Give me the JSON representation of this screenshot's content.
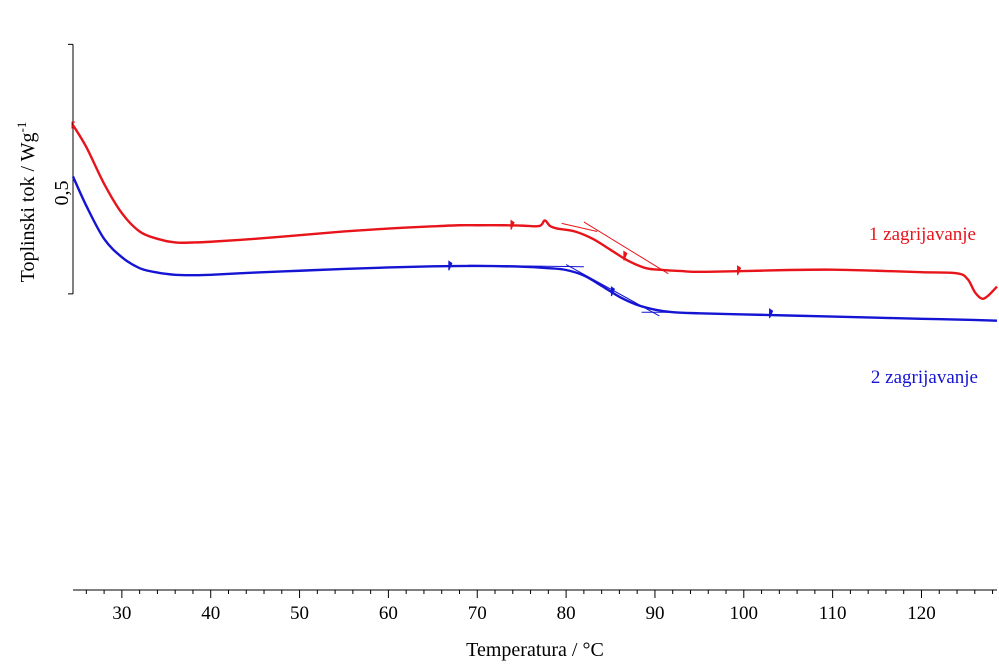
{
  "chart_data": {
    "type": "line",
    "title": "",
    "xlabel": "Temperatura / °C",
    "ylabel": "Toplinski tok / Wg",
    "ylabel_superscript": "-1",
    "scale_bar_label": "0,5",
    "xlim": [
      24.5,
      128.5
    ],
    "ylim": [
      -0.3,
      1.0
    ],
    "x_ticks": [
      30,
      40,
      50,
      60,
      70,
      80,
      90,
      100,
      110,
      120
    ],
    "x_tick_labels": [
      "30",
      "40",
      "50",
      "60",
      "70",
      "80",
      "90",
      "100",
      "110",
      "120"
    ],
    "x_minor_step": 2,
    "grid": false,
    "series": [
      {
        "name": "1 zagrijavanje",
        "color": "#e8141b",
        "x": [
          24.5,
          26,
          28,
          30,
          32,
          34,
          36,
          38,
          40,
          45,
          50,
          55,
          60,
          65,
          68,
          70,
          73,
          75,
          77,
          77.6,
          78.2,
          79,
          81,
          83,
          85,
          87,
          89,
          91,
          93,
          95,
          100,
          105,
          110,
          115,
          120,
          124,
          125.2,
          126,
          126.8,
          127.5,
          128.5
        ],
        "y": [
          0.7,
          0.64,
          0.54,
          0.46,
          0.41,
          0.39,
          0.38,
          0.38,
          0.382,
          0.39,
          0.4,
          0.41,
          0.418,
          0.424,
          0.427,
          0.427,
          0.427,
          0.426,
          0.425,
          0.44,
          0.425,
          0.418,
          0.41,
          0.39,
          0.36,
          0.33,
          0.31,
          0.305,
          0.302,
          0.3,
          0.302,
          0.305,
          0.306,
          0.303,
          0.299,
          0.296,
          0.28,
          0.245,
          0.227,
          0.235,
          0.26
        ]
      },
      {
        "name": "2 zagrijavanje",
        "color": "#1414d2",
        "x": [
          24.5,
          26,
          28,
          30,
          32,
          34,
          36,
          38,
          40,
          45,
          50,
          55,
          60,
          65,
          70,
          75,
          78,
          80,
          82,
          84,
          86,
          88,
          90,
          92,
          95,
          100,
          105,
          110,
          115,
          120,
          124,
          128.5
        ],
        "y": [
          0.56,
          0.48,
          0.39,
          0.34,
          0.31,
          0.298,
          0.292,
          0.291,
          0.292,
          0.298,
          0.303,
          0.308,
          0.312,
          0.315,
          0.316,
          0.314,
          0.31,
          0.305,
          0.29,
          0.262,
          0.232,
          0.21,
          0.197,
          0.19,
          0.187,
          0.184,
          0.181,
          0.178,
          0.175,
          0.172,
          0.17,
          0.167
        ]
      }
    ],
    "markers": [
      {
        "series": 0,
        "x": 73.8,
        "y": 0.426
      },
      {
        "series": 0,
        "x": 86.5,
        "y": 0.342
      },
      {
        "series": 0,
        "x": 99.3,
        "y": 0.302
      },
      {
        "series": 1,
        "x": 66.8,
        "y": 0.315
      },
      {
        "series": 1,
        "x": 85.1,
        "y": 0.245
      },
      {
        "series": 1,
        "x": 102.9,
        "y": 0.185
      }
    ],
    "tangent_lines": [
      {
        "series": 0,
        "x": [
          79.5,
          83.5
        ],
        "y": [
          0.432,
          0.41
        ]
      },
      {
        "series": 0,
        "x": 89.5,
        "x2": 92,
        "y": [
          0.306,
          0.303
        ]
      },
      {
        "series": 0,
        "x": [
          82,
          91.5
        ],
        "y": [
          0.436,
          0.295
        ]
      },
      {
        "series": 1,
        "x": [
          69,
          82
        ],
        "y": [
          0.318,
          0.314
        ]
      },
      {
        "series": 1,
        "x": [
          88.5,
          92
        ],
        "y": [
          0.19,
          0.19
        ]
      },
      {
        "series": 1,
        "x": [
          80,
          90.5
        ],
        "y": [
          0.32,
          0.18
        ]
      }
    ],
    "scale_bar": {
      "y_top": 0.92,
      "y_bottom": 0.24
    }
  }
}
